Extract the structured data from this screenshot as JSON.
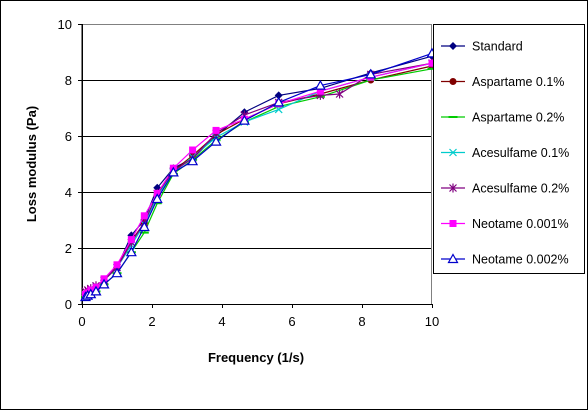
{
  "chart_data": {
    "type": "line",
    "title": "",
    "xlabel": "Frequency  (1/s)",
    "ylabel": "Loss modulus  (Pa)",
    "xlim": [
      0,
      10
    ],
    "ylim": [
      0,
      10
    ],
    "xticks": [
      0,
      2,
      4,
      6,
      8,
      10
    ],
    "yticks": [
      0,
      2,
      4,
      6,
      8,
      10
    ],
    "x_tick_labels": [
      "0",
      "2",
      "4",
      "6",
      "8",
      "10"
    ],
    "y_tick_labels": [
      "0",
      "2",
      "4",
      "6",
      "8",
      "10"
    ],
    "grid": "horizontal",
    "legend_position": "right",
    "series": [
      {
        "name": "Standard",
        "color": "#000080",
        "marker": "diamond",
        "x": [
          0.1,
          0.16,
          0.25,
          0.4,
          0.63,
          1.0,
          1.41,
          1.78,
          2.15,
          2.61,
          3.16,
          3.83,
          4.64,
          5.62,
          6.81,
          8.25,
          10.0
        ],
        "y": [
          0.35,
          0.4,
          0.48,
          0.6,
          0.85,
          1.3,
          2.45,
          3.0,
          4.15,
          4.85,
          5.2,
          6.0,
          6.85,
          7.45,
          7.7,
          8.25,
          8.85
        ]
      },
      {
        "name": "Aspartame 0.1%",
        "color": "#800000",
        "marker": "circle",
        "x": [
          0.1,
          0.16,
          0.25,
          0.4,
          0.63,
          1.0,
          1.41,
          1.78,
          2.15,
          2.61,
          3.16,
          3.83,
          4.64,
          5.62,
          6.81,
          8.25,
          10.0
        ],
        "y": [
          0.3,
          0.35,
          0.45,
          0.55,
          0.85,
          1.35,
          2.25,
          2.9,
          3.9,
          4.75,
          5.3,
          6.05,
          6.6,
          7.15,
          7.5,
          8.0,
          8.5
        ]
      },
      {
        "name": "Aspartame 0.2%",
        "color": "#00cc00",
        "marker": "dash",
        "x": [
          0.1,
          0.16,
          0.25,
          0.4,
          0.63,
          1.0,
          1.41,
          1.78,
          2.15,
          2.61,
          3.16,
          3.83,
          4.64,
          5.62,
          6.81,
          8.25,
          10.0
        ],
        "y": [
          0.25,
          0.3,
          0.35,
          0.45,
          0.7,
          1.1,
          1.85,
          2.55,
          3.6,
          4.65,
          5.15,
          5.85,
          6.5,
          7.05,
          7.4,
          8.0,
          8.4
        ]
      },
      {
        "name": "Acesulfame 0.1%",
        "color": "#00cccc",
        "marker": "x",
        "x": [
          0.1,
          0.16,
          0.25,
          0.4,
          0.63,
          1.0,
          1.41,
          1.78,
          2.15,
          2.61,
          3.16,
          3.83,
          4.64,
          5.62,
          6.81,
          8.25,
          10.0
        ],
        "y": [
          0.3,
          0.35,
          0.45,
          0.6,
          0.85,
          1.3,
          2.1,
          2.85,
          3.85,
          4.7,
          5.25,
          5.95,
          6.5,
          6.95,
          7.6,
          8.1,
          8.6
        ]
      },
      {
        "name": "Acesulfame 0.2%",
        "color": "#800080",
        "marker": "star",
        "x": [
          0.1,
          0.16,
          0.25,
          0.4,
          0.63,
          1.0,
          1.41,
          1.78,
          2.15,
          2.61,
          3.16,
          3.83,
          4.64,
          5.62,
          6.81,
          7.36,
          8.25,
          10.0
        ],
        "y": [
          0.45,
          0.5,
          0.55,
          0.65,
          0.85,
          1.3,
          2.2,
          2.9,
          3.95,
          4.75,
          5.2,
          6.1,
          6.75,
          7.2,
          7.45,
          7.5,
          8.2,
          8.6
        ]
      },
      {
        "name": "Neotame 0.001%",
        "color": "#ff00ff",
        "marker": "square",
        "x": [
          0.1,
          0.16,
          0.25,
          0.4,
          0.63,
          1.0,
          1.41,
          1.78,
          2.15,
          2.61,
          3.16,
          3.83,
          4.64,
          5.62,
          6.81,
          8.25,
          10.0
        ],
        "y": [
          0.35,
          0.4,
          0.5,
          0.6,
          0.9,
          1.4,
          2.3,
          3.15,
          3.95,
          4.85,
          5.5,
          6.2,
          6.6,
          7.15,
          7.6,
          8.1,
          8.6
        ]
      },
      {
        "name": "Neotame 0.002%",
        "color": "#0000cc",
        "marker": "triangle",
        "x": [
          0.1,
          0.16,
          0.25,
          0.4,
          0.63,
          1.0,
          1.41,
          1.78,
          2.15,
          2.61,
          3.16,
          3.83,
          4.64,
          5.62,
          6.81,
          8.25,
          10.0
        ],
        "y": [
          0.25,
          0.3,
          0.35,
          0.45,
          0.7,
          1.1,
          1.85,
          2.75,
          3.75,
          4.7,
          5.1,
          5.8,
          6.55,
          7.2,
          7.8,
          8.2,
          8.95
        ]
      }
    ]
  }
}
